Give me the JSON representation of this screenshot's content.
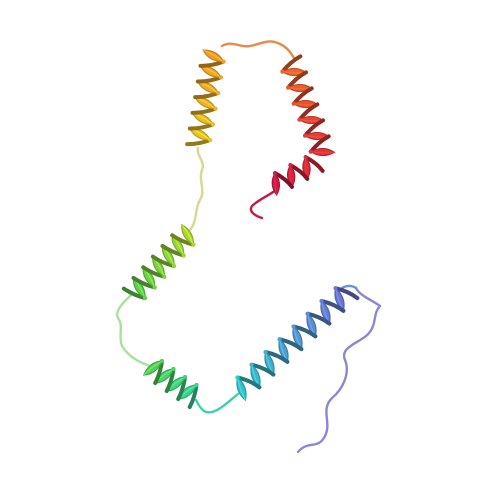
{
  "structure": {
    "representation": "cartoon",
    "coloring": "rainbow N-to-C",
    "background": "#ffffff",
    "palette": {
      "n_terminus": "#7070d8",
      "blue": "#4a9ee8",
      "cyan": "#2fc8c8",
      "teal": "#36d59a",
      "green": "#5ad050",
      "yellow_green": "#b4d830",
      "yellow": "#e8c828",
      "orange": "#f29a26",
      "orange_red": "#f06a2a",
      "red": "#e0303a",
      "crimson": "#c81848"
    }
  }
}
